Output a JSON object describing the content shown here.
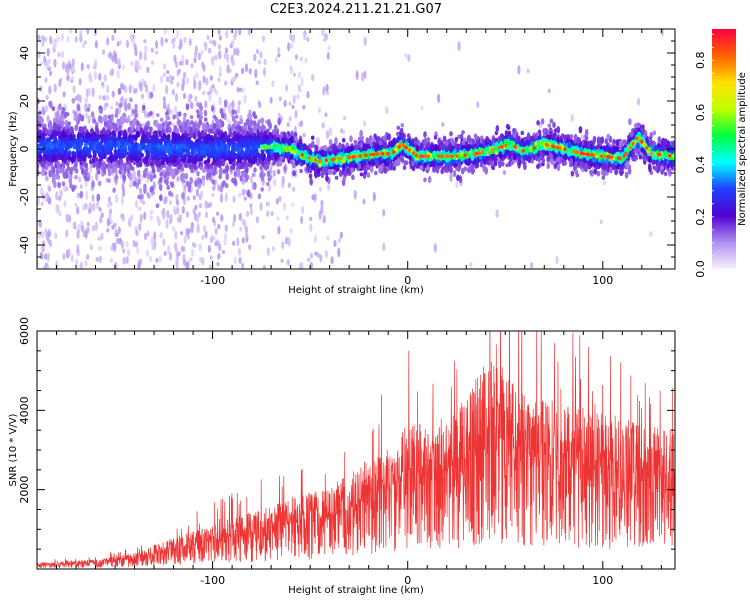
{
  "title": "C2E3.2024.211.21.21.G07",
  "chart_data": [
    {
      "type": "heatmap",
      "xlabel": "Height of straight line (km)",
      "ylabel": "Frequency (Hz)",
      "xlim": [
        -190,
        137
      ],
      "ylim": [
        -50,
        50
      ],
      "xticks": [
        -100,
        0,
        100
      ],
      "yticks": [
        -40,
        -20,
        0,
        20,
        40
      ],
      "colorbar": {
        "label": "Normalized spectral amplitude",
        "range": [
          0,
          0.92
        ],
        "ticks": [
          0.0,
          0.2,
          0.4,
          0.6,
          0.8
        ],
        "colormap": "rainbow",
        "colors": [
          "#f8f0ff",
          "#b090f0",
          "#5000d0",
          "#2040ff",
          "#00ffff",
          "#00ff40",
          "#c0ff00",
          "#ffe000",
          "#ff6000",
          "#ff0040"
        ]
      },
      "ridge": {
        "description_points_x": [
          -190,
          -150,
          -120,
          -95,
          -80,
          -70,
          -60,
          -50,
          -45,
          -35,
          -25,
          -15,
          -8,
          -3,
          5,
          15,
          25,
          35,
          45,
          52,
          60,
          70,
          80,
          90,
          100,
          110,
          118,
          125,
          137
        ],
        "description_points_y": [
          1,
          1,
          0,
          0,
          0,
          1,
          0,
          -4,
          -5,
          -4,
          -3,
          -2,
          -2,
          2,
          -3,
          -3,
          -3,
          -2,
          0,
          2,
          -1,
          2,
          0,
          -2,
          -3,
          -4,
          5,
          -2,
          -3
        ]
      }
    },
    {
      "type": "line",
      "xlabel": "Height of straight line (km)",
      "ylabel": "SNR (10 * V/V)",
      "xlim": [
        -190,
        137
      ],
      "ylim": [
        0,
        6000
      ],
      "xticks": [
        -100,
        0,
        100
      ],
      "yticks": [
        2000,
        4000,
        6000
      ],
      "line_color": "#ee3333",
      "trend_x": [
        -190,
        -160,
        -140,
        -120,
        -100,
        -80,
        -60,
        -40,
        -20,
        -5,
        0,
        10,
        20,
        30,
        40,
        45,
        50,
        60,
        80,
        100,
        120,
        137
      ],
      "trend_y": [
        100,
        150,
        250,
        500,
        700,
        900,
        1100,
        1300,
        1700,
        2100,
        2300,
        2300,
        2400,
        2700,
        3300,
        3400,
        3100,
        2800,
        2600,
        2500,
        2300,
        2200
      ]
    }
  ]
}
